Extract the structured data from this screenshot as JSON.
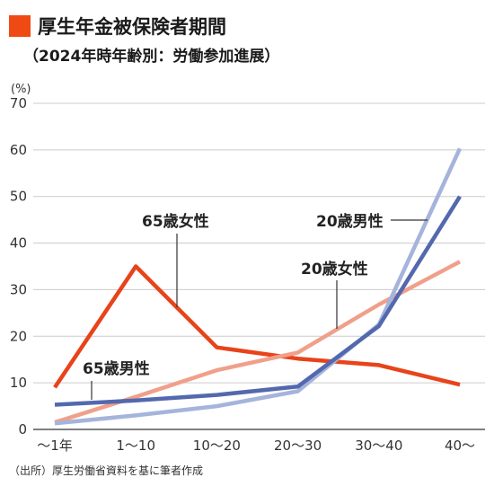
{
  "header": {
    "title": "厚生年金被保険者期間",
    "subtitle": "（2024年時年齢別：労働参加進展）",
    "accent_color": "#f04a14"
  },
  "footer": {
    "source": "（出所）厚生労働省資料を基に筆者作成"
  },
  "chart_data": {
    "type": "line",
    "unit_label": "(%)",
    "categories": [
      "〜1年",
      "1〜10",
      "10〜20",
      "20〜30",
      "30〜40",
      "40〜"
    ],
    "ylim": [
      0,
      70
    ],
    "yticks": [
      0,
      10,
      20,
      30,
      40,
      50,
      60,
      70
    ],
    "grid": true,
    "series": [
      {
        "name": "65歳女性",
        "color": "#e8431a",
        "values": [
          9,
          35,
          17.6,
          15.2,
          13.8,
          9.6
        ]
      },
      {
        "name": "20歳女性",
        "color": "#f0a08a",
        "values": [
          1.5,
          7,
          12.7,
          16.5,
          26.8,
          36
        ]
      },
      {
        "name": "20歳男性",
        "color": "#a5b4db",
        "values": [
          1.3,
          3,
          5,
          8.2,
          22.5,
          60.3
        ]
      },
      {
        "name": "65歳男性",
        "color": "#5368ae",
        "values": [
          5.3,
          6.2,
          7.4,
          9.2,
          22.2,
          50
        ]
      }
    ]
  }
}
